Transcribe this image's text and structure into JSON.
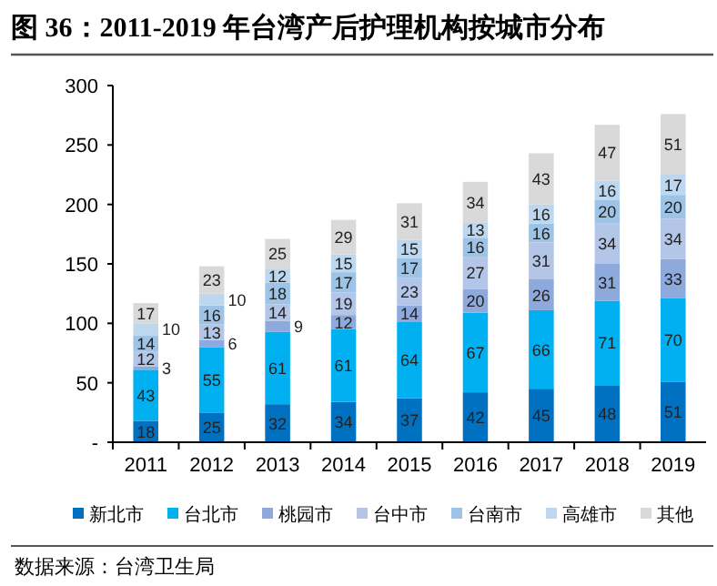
{
  "chart_data": {
    "type": "bar",
    "title": "图 36：2011-2019 年台湾产后护理机构按城市分布",
    "categories": [
      "2011",
      "2012",
      "2013",
      "2014",
      "2015",
      "2016",
      "2017",
      "2018",
      "2019"
    ],
    "stacked": true,
    "data_labels": true,
    "legend": "bottom",
    "ylim": [
      0,
      300
    ],
    "yticks": [
      {
        "value": 0,
        "label": "-"
      },
      50,
      100,
      150,
      200,
      250,
      300
    ],
    "series": [
      {
        "name": "新北市",
        "color": "#0070c0",
        "values": [
          18,
          25,
          32,
          34,
          37,
          42,
          45,
          48,
          51
        ]
      },
      {
        "name": "台北市",
        "color": "#00b0f0",
        "values": [
          43,
          55,
          61,
          61,
          64,
          67,
          66,
          71,
          70
        ]
      },
      {
        "name": "桃园市",
        "color": "#8ea9db",
        "values": [
          3,
          6,
          9,
          12,
          14,
          20,
          26,
          31,
          33
        ]
      },
      {
        "name": "台中市",
        "color": "#b4c6e7",
        "values": [
          12,
          13,
          14,
          19,
          23,
          27,
          31,
          34,
          34
        ]
      },
      {
        "name": "台南市",
        "color": "#9dc3e6",
        "values": [
          14,
          16,
          18,
          17,
          17,
          16,
          16,
          20,
          20
        ]
      },
      {
        "name": "高雄市",
        "color": "#bdd7ee",
        "values": [
          10,
          10,
          12,
          15,
          15,
          13,
          16,
          16,
          17
        ]
      },
      {
        "name": "其他",
        "color": "#d9d9d9",
        "values": [
          17,
          23,
          25,
          29,
          31,
          34,
          43,
          47,
          51
        ]
      }
    ],
    "annotations": [
      "数据来源：台湾卫生局"
    ]
  }
}
